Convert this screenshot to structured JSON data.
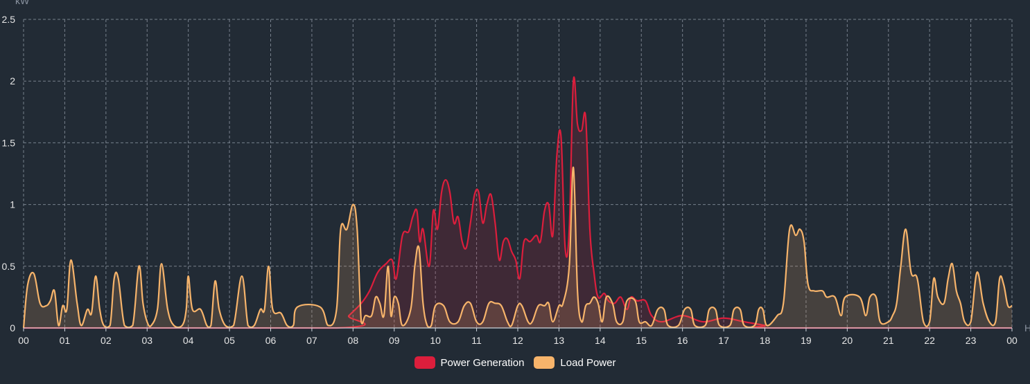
{
  "chart_data": {
    "type": "area",
    "y_unit": "kW",
    "x_unit": "H",
    "ylim": [
      0,
      2.5
    ],
    "y_ticks": [
      "0",
      "0.5",
      "1",
      "1.5",
      "2",
      "2.5"
    ],
    "y_tick_values": [
      0,
      0.5,
      1,
      1.5,
      2,
      2.5
    ],
    "x_ticks": [
      "00",
      "01",
      "02",
      "03",
      "04",
      "05",
      "06",
      "07",
      "08",
      "09",
      "10",
      "11",
      "12",
      "13",
      "14",
      "15",
      "16",
      "17",
      "18",
      "19",
      "20",
      "21",
      "22",
      "23",
      "00"
    ],
    "grid": true,
    "legend_placement": "bottom-center",
    "series": [
      {
        "name": "Power Generation",
        "color": "#dc1e3c",
        "points": [
          [
            0,
            0
          ],
          [
            7.6,
            0
          ],
          [
            7.9,
            0.1
          ],
          [
            8.2,
            0.2
          ],
          [
            8.4,
            0.3
          ],
          [
            8.6,
            0.45
          ],
          [
            8.8,
            0.52
          ],
          [
            8.95,
            0.55
          ],
          [
            9.05,
            0.4
          ],
          [
            9.2,
            0.75
          ],
          [
            9.35,
            0.78
          ],
          [
            9.45,
            0.9
          ],
          [
            9.55,
            0.95
          ],
          [
            9.62,
            0.7
          ],
          [
            9.7,
            0.8
          ],
          [
            9.85,
            0.5
          ],
          [
            9.95,
            0.95
          ],
          [
            10.05,
            0.8
          ],
          [
            10.15,
            1.1
          ],
          [
            10.25,
            1.2
          ],
          [
            10.35,
            1.1
          ],
          [
            10.45,
            0.85
          ],
          [
            10.55,
            0.9
          ],
          [
            10.65,
            0.7
          ],
          [
            10.75,
            0.65
          ],
          [
            10.85,
            0.85
          ],
          [
            10.95,
            1.08
          ],
          [
            11.05,
            1.1
          ],
          [
            11.15,
            0.85
          ],
          [
            11.25,
            1.0
          ],
          [
            11.35,
            1.08
          ],
          [
            11.45,
            0.85
          ],
          [
            11.55,
            0.55
          ],
          [
            11.65,
            0.7
          ],
          [
            11.75,
            0.72
          ],
          [
            11.85,
            0.62
          ],
          [
            11.95,
            0.55
          ],
          [
            12.05,
            0.4
          ],
          [
            12.15,
            0.7
          ],
          [
            12.3,
            0.7
          ],
          [
            12.45,
            0.75
          ],
          [
            12.55,
            0.7
          ],
          [
            12.65,
            0.95
          ],
          [
            12.75,
            1.0
          ],
          [
            12.85,
            0.75
          ],
          [
            12.95,
            1.4
          ],
          [
            13.05,
            1.55
          ],
          [
            13.15,
            0.65
          ],
          [
            13.25,
            0.8
          ],
          [
            13.35,
            2.0
          ],
          [
            13.45,
            1.65
          ],
          [
            13.55,
            1.6
          ],
          [
            13.65,
            1.7
          ],
          [
            13.75,
            0.8
          ],
          [
            13.85,
            0.45
          ],
          [
            13.95,
            0.25
          ],
          [
            14.1,
            0.28
          ],
          [
            14.2,
            0.22
          ],
          [
            14.35,
            0.2
          ],
          [
            14.5,
            0.25
          ],
          [
            14.65,
            0.15
          ],
          [
            14.75,
            0.25
          ],
          [
            14.9,
            0.22
          ],
          [
            15.1,
            0.22
          ],
          [
            15.25,
            0.1
          ],
          [
            15.5,
            0.05
          ],
          [
            16,
            0.1
          ],
          [
            16.5,
            0.05
          ],
          [
            17,
            0.08
          ],
          [
            17.5,
            0.05
          ],
          [
            18,
            0.02
          ],
          [
            18.2,
            0
          ],
          [
            24,
            0
          ]
        ]
      },
      {
        "name": "Load Power",
        "color": "#f7b46b",
        "points": [
          [
            0,
            0
          ],
          [
            0.1,
            0.35
          ],
          [
            0.25,
            0.44
          ],
          [
            0.4,
            0.2
          ],
          [
            0.55,
            0.18
          ],
          [
            0.65,
            0.22
          ],
          [
            0.75,
            0.3
          ],
          [
            0.85,
            0.02
          ],
          [
            0.95,
            0.18
          ],
          [
            1.05,
            0.15
          ],
          [
            1.15,
            0.55
          ],
          [
            1.3,
            0.2
          ],
          [
            1.4,
            0.02
          ],
          [
            1.55,
            0.15
          ],
          [
            1.65,
            0.12
          ],
          [
            1.75,
            0.42
          ],
          [
            1.85,
            0.15
          ],
          [
            1.95,
            0.02
          ],
          [
            2.1,
            0.02
          ],
          [
            2.2,
            0.4
          ],
          [
            2.3,
            0.4
          ],
          [
            2.45,
            0.02
          ],
          [
            2.65,
            0.02
          ],
          [
            2.8,
            0.5
          ],
          [
            2.9,
            0.2
          ],
          [
            3.0,
            0.05
          ],
          [
            3.1,
            0.02
          ],
          [
            3.25,
            0.15
          ],
          [
            3.35,
            0.52
          ],
          [
            3.5,
            0.15
          ],
          [
            3.65,
            0.02
          ],
          [
            3.85,
            0.02
          ],
          [
            3.95,
            0.15
          ],
          [
            4.0,
            0.42
          ],
          [
            4.1,
            0.15
          ],
          [
            4.3,
            0.15
          ],
          [
            4.45,
            0.02
          ],
          [
            4.55,
            0.02
          ],
          [
            4.65,
            0.38
          ],
          [
            4.75,
            0.15
          ],
          [
            4.9,
            0.02
          ],
          [
            5.1,
            0.02
          ],
          [
            5.3,
            0.42
          ],
          [
            5.45,
            0.02
          ],
          [
            5.6,
            0.02
          ],
          [
            5.75,
            0.15
          ],
          [
            5.85,
            0.15
          ],
          [
            5.95,
            0.5
          ],
          [
            6.05,
            0.15
          ],
          [
            6.25,
            0.12
          ],
          [
            6.4,
            0.02
          ],
          [
            6.55,
            0.02
          ],
          [
            6.65,
            0.17
          ],
          [
            7.2,
            0.17
          ],
          [
            7.4,
            0.02
          ],
          [
            7.6,
            0.15
          ],
          [
            7.7,
            0.8
          ],
          [
            7.85,
            0.8
          ],
          [
            8.0,
            1.0
          ],
          [
            8.1,
            0.8
          ],
          [
            8.2,
            0.05
          ],
          [
            8.3,
            0.1
          ],
          [
            8.45,
            0.1
          ],
          [
            8.55,
            0.25
          ],
          [
            8.65,
            0.2
          ],
          [
            8.75,
            0.1
          ],
          [
            8.85,
            0.5
          ],
          [
            8.92,
            0.1
          ],
          [
            9.0,
            0.25
          ],
          [
            9.1,
            0.2
          ],
          [
            9.2,
            0.02
          ],
          [
            9.4,
            0.15
          ],
          [
            9.5,
            0.5
          ],
          [
            9.6,
            0.65
          ],
          [
            9.7,
            0.2
          ],
          [
            9.8,
            0.02
          ],
          [
            9.9,
            0.02
          ],
          [
            10.0,
            0.18
          ],
          [
            10.2,
            0.18
          ],
          [
            10.35,
            0.05
          ],
          [
            10.55,
            0.05
          ],
          [
            10.7,
            0.18
          ],
          [
            10.85,
            0.2
          ],
          [
            11.0,
            0.05
          ],
          [
            11.15,
            0.05
          ],
          [
            11.3,
            0.2
          ],
          [
            11.45,
            0.2
          ],
          [
            11.6,
            0.18
          ],
          [
            11.75,
            0.05
          ],
          [
            11.85,
            0.02
          ],
          [
            12.0,
            0.18
          ],
          [
            12.1,
            0.18
          ],
          [
            12.25,
            0.05
          ],
          [
            12.35,
            0.05
          ],
          [
            12.5,
            0.18
          ],
          [
            12.65,
            0.18
          ],
          [
            12.75,
            0.2
          ],
          [
            12.85,
            0.05
          ],
          [
            13.0,
            0.18
          ],
          [
            13.1,
            0.2
          ],
          [
            13.25,
            0.5
          ],
          [
            13.35,
            1.3
          ],
          [
            13.45,
            0.3
          ],
          [
            13.55,
            0.05
          ],
          [
            13.65,
            0.18
          ],
          [
            13.75,
            0.2
          ],
          [
            13.85,
            0.25
          ],
          [
            13.95,
            0.2
          ],
          [
            14.05,
            0.05
          ],
          [
            14.15,
            0.25
          ],
          [
            14.3,
            0.2
          ],
          [
            14.4,
            0.05
          ],
          [
            14.55,
            0.05
          ],
          [
            14.65,
            0.22
          ],
          [
            14.85,
            0.22
          ],
          [
            14.95,
            0.05
          ],
          [
            15.1,
            0.05
          ],
          [
            15.25,
            0.02
          ],
          [
            15.4,
            0.15
          ],
          [
            15.55,
            0.15
          ],
          [
            15.65,
            0.02
          ],
          [
            15.9,
            0.02
          ],
          [
            16.05,
            0.15
          ],
          [
            16.2,
            0.15
          ],
          [
            16.3,
            0.02
          ],
          [
            16.55,
            0.02
          ],
          [
            16.65,
            0.15
          ],
          [
            16.8,
            0.15
          ],
          [
            16.9,
            0.02
          ],
          [
            17.15,
            0.02
          ],
          [
            17.25,
            0.15
          ],
          [
            17.4,
            0.15
          ],
          [
            17.5,
            0.02
          ],
          [
            17.75,
            0.02
          ],
          [
            17.85,
            0.15
          ],
          [
            17.95,
            0.15
          ],
          [
            18.05,
            0.02
          ],
          [
            18.3,
            0.1
          ],
          [
            18.45,
            0.2
          ],
          [
            18.6,
            0.8
          ],
          [
            18.75,
            0.75
          ],
          [
            18.85,
            0.8
          ],
          [
            18.95,
            0.7
          ],
          [
            19.05,
            0.35
          ],
          [
            19.2,
            0.3
          ],
          [
            19.4,
            0.3
          ],
          [
            19.5,
            0.25
          ],
          [
            19.7,
            0.25
          ],
          [
            19.85,
            0.1
          ],
          [
            19.95,
            0.25
          ],
          [
            20.3,
            0.25
          ],
          [
            20.45,
            0.1
          ],
          [
            20.55,
            0.25
          ],
          [
            20.7,
            0.25
          ],
          [
            20.8,
            0.05
          ],
          [
            21.0,
            0.05
          ],
          [
            21.1,
            0.1
          ],
          [
            21.2,
            0.2
          ],
          [
            21.3,
            0.5
          ],
          [
            21.42,
            0.8
          ],
          [
            21.55,
            0.45
          ],
          [
            21.7,
            0.4
          ],
          [
            21.85,
            0.05
          ],
          [
            22.0,
            0.05
          ],
          [
            22.1,
            0.4
          ],
          [
            22.2,
            0.25
          ],
          [
            22.35,
            0.2
          ],
          [
            22.45,
            0.4
          ],
          [
            22.55,
            0.52
          ],
          [
            22.65,
            0.3
          ],
          [
            22.75,
            0.2
          ],
          [
            22.85,
            0.05
          ],
          [
            23.0,
            0.05
          ],
          [
            23.15,
            0.45
          ],
          [
            23.3,
            0.2
          ],
          [
            23.45,
            0.05
          ],
          [
            23.6,
            0.05
          ],
          [
            23.7,
            0.4
          ],
          [
            23.8,
            0.35
          ],
          [
            23.9,
            0.18
          ],
          [
            24.0,
            0.18
          ]
        ]
      }
    ]
  }
}
